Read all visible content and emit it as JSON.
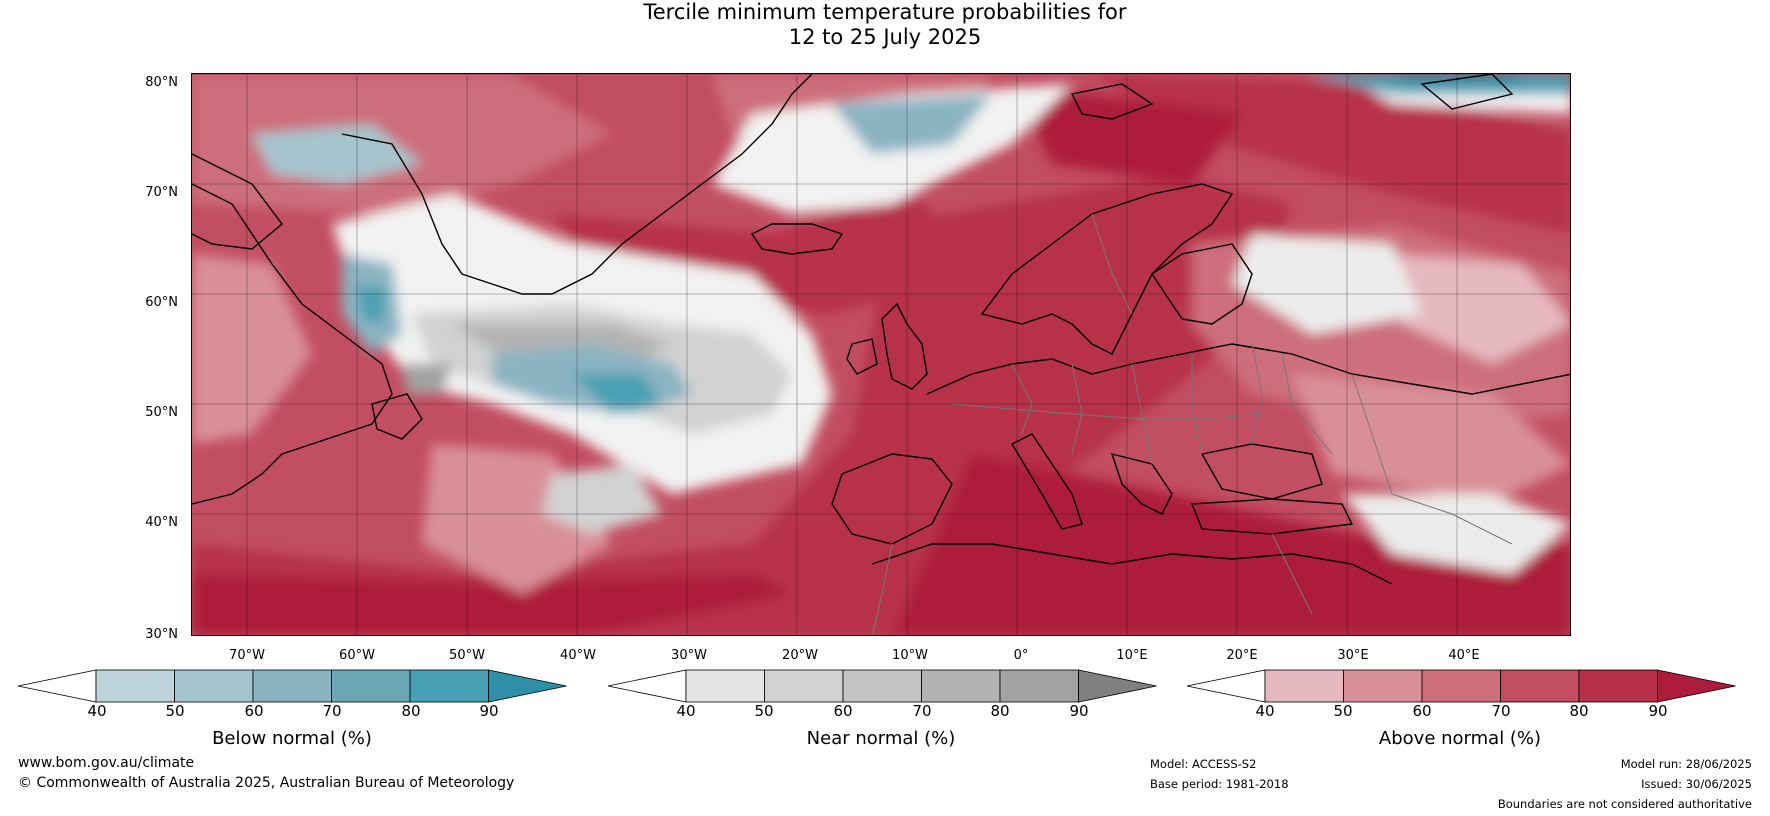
{
  "title": {
    "line1": "Tercile minimum temperature probabilities for",
    "line2": "12 to 25 July 2025"
  },
  "axes": {
    "lat_labels": [
      "80°N",
      "70°N",
      "60°N",
      "50°N",
      "40°N",
      "30°N"
    ],
    "lon_labels": [
      "70°W",
      "60°W",
      "50°W",
      "40°W",
      "30°W",
      "20°W",
      "10°W",
      "0°",
      "10°E",
      "20°E",
      "30°E",
      "40°E"
    ]
  },
  "colorbars": {
    "ticks": [
      "40",
      "50",
      "60",
      "70",
      "80",
      "90"
    ],
    "below": {
      "label": "Below normal (%)",
      "colors": [
        "#ffffff",
        "#bdd4db",
        "#a6c4cd",
        "#8bb4c2",
        "#6aa8b6",
        "#48a0b4",
        "#2d90a6"
      ]
    },
    "near": {
      "label": "Near normal (%)",
      "colors": [
        "#ffffff",
        "#e5e5e5",
        "#d2d2d2",
        "#c3c3c3",
        "#b3b3b3",
        "#a2a2a2",
        "#808080"
      ]
    },
    "above": {
      "label": "Above normal (%)",
      "colors": [
        "#ffffff",
        "#e6b8bf",
        "#d98f99",
        "#cd6e7b",
        "#c24e61",
        "#b7304a",
        "#ad1c3a"
      ]
    }
  },
  "footer": {
    "website": "www.bom.gov.au/climate",
    "copyright": "© Commonwealth of Australia 2025, Australian Bureau of Meteorology",
    "model": "Model: ACCESS-S2",
    "base_period": "Base period: 1981-2018",
    "model_run": "Model run: 28/06/2025",
    "issued": "Issued: 30/06/2025",
    "disclaimer": "Boundaries are not considered authoritative"
  }
}
